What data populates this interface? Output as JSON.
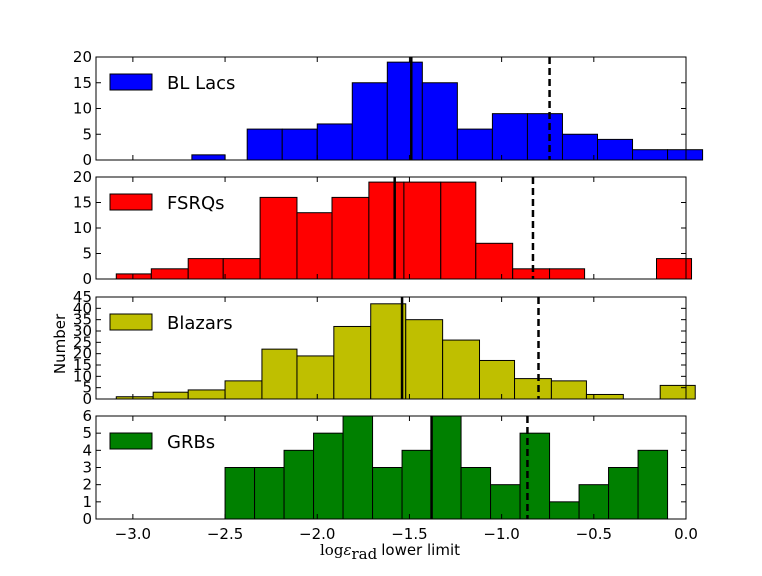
{
  "chart_data": {
    "type": "histogram-stack",
    "ylabel": "Number",
    "xlabel": {
      "math_main": "log",
      "math_eps": "ε",
      "math_sub": "rad",
      "rest": "lower limit"
    },
    "xlim": [
      -3.2,
      0.0
    ],
    "xticks": [
      -3.0,
      -2.5,
      -2.0,
      -1.5,
      -1.0,
      -0.5,
      0.0
    ],
    "xtick_labels": [
      "−3.0",
      "−2.5",
      "−2.0",
      "−1.5",
      "−1.0",
      "−0.5",
      "0.0"
    ],
    "panels": [
      {
        "name": "BL Lacs",
        "color": "#0000ff",
        "ylim": [
          0,
          20
        ],
        "yticks": [
          0,
          5,
          10,
          15,
          20
        ],
        "bins": [
          {
            "x0": -2.68,
            "x1": -2.5,
            "v": 1
          },
          {
            "x0": -2.38,
            "x1": -2.19,
            "v": 6
          },
          {
            "x0": -2.19,
            "x1": -2.0,
            "v": 6
          },
          {
            "x0": -2.0,
            "x1": -1.81,
            "v": 7
          },
          {
            "x0": -1.81,
            "x1": -1.62,
            "v": 15
          },
          {
            "x0": -1.62,
            "x1": -1.43,
            "v": 19
          },
          {
            "x0": -1.43,
            "x1": -1.24,
            "v": 15
          },
          {
            "x0": -1.24,
            "x1": -1.05,
            "v": 6
          },
          {
            "x0": -1.05,
            "x1": -0.86,
            "v": 9
          },
          {
            "x0": -0.86,
            "x1": -0.67,
            "v": 9
          },
          {
            "x0": -0.67,
            "x1": -0.48,
            "v": 5
          },
          {
            "x0": -0.48,
            "x1": -0.29,
            "v": 4
          },
          {
            "x0": -0.29,
            "x1": -0.1,
            "v": 2
          },
          {
            "x0": -0.1,
            "x1": 0.09,
            "v": 2
          }
        ],
        "solid_line": -1.49,
        "dashed_line": -0.74
      },
      {
        "name": "FSRQs",
        "color": "#ff0000",
        "ylim": [
          0,
          20
        ],
        "yticks": [
          0,
          5,
          10,
          15,
          20
        ],
        "bins": [
          {
            "x0": -3.09,
            "x1": -2.9,
            "v": 1
          },
          {
            "x0": -2.9,
            "x1": -2.7,
            "v": 2
          },
          {
            "x0": -2.7,
            "x1": -2.51,
            "v": 4
          },
          {
            "x0": -2.51,
            "x1": -2.31,
            "v": 4
          },
          {
            "x0": -2.31,
            "x1": -2.11,
            "v": 16
          },
          {
            "x0": -2.11,
            "x1": -1.92,
            "v": 13
          },
          {
            "x0": -1.92,
            "x1": -1.72,
            "v": 16
          },
          {
            "x0": -1.72,
            "x1": -1.53,
            "v": 19
          },
          {
            "x0": -1.53,
            "x1": -1.33,
            "v": 19
          },
          {
            "x0": -1.33,
            "x1": -1.14,
            "v": 19
          },
          {
            "x0": -1.14,
            "x1": -0.94,
            "v": 7
          },
          {
            "x0": -0.94,
            "x1": -0.74,
            "v": 2
          },
          {
            "x0": -0.74,
            "x1": -0.55,
            "v": 2
          },
          {
            "x0": -0.55,
            "x1": -0.35,
            "v": 0
          },
          {
            "x0": -0.35,
            "x1": -0.16,
            "v": 0
          },
          {
            "x0": -0.16,
            "x1": 0.03,
            "v": 4
          }
        ],
        "solid_line": -1.58,
        "dashed_line": -0.83
      },
      {
        "name": "Blazars",
        "color": "#bfbf00",
        "ylim": [
          0,
          45
        ],
        "yticks": [
          0,
          5,
          10,
          15,
          20,
          25,
          30,
          35,
          40,
          45
        ],
        "bins": [
          {
            "x0": -3.09,
            "x1": -2.89,
            "v": 1
          },
          {
            "x0": -2.89,
            "x1": -2.7,
            "v": 3
          },
          {
            "x0": -2.7,
            "x1": -2.5,
            "v": 4
          },
          {
            "x0": -2.5,
            "x1": -2.3,
            "v": 8
          },
          {
            "x0": -2.3,
            "x1": -2.11,
            "v": 22
          },
          {
            "x0": -2.11,
            "x1": -1.91,
            "v": 19
          },
          {
            "x0": -1.91,
            "x1": -1.71,
            "v": 32
          },
          {
            "x0": -1.71,
            "x1": -1.52,
            "v": 42
          },
          {
            "x0": -1.52,
            "x1": -1.32,
            "v": 35
          },
          {
            "x0": -1.32,
            "x1": -1.12,
            "v": 26
          },
          {
            "x0": -1.12,
            "x1": -0.93,
            "v": 17
          },
          {
            "x0": -0.93,
            "x1": -0.73,
            "v": 9
          },
          {
            "x0": -0.73,
            "x1": -0.54,
            "v": 8
          },
          {
            "x0": -0.54,
            "x1": -0.34,
            "v": 2
          },
          {
            "x0": -0.34,
            "x1": -0.14,
            "v": 0
          },
          {
            "x0": -0.14,
            "x1": 0.05,
            "v": 6
          }
        ],
        "solid_line": -1.54,
        "dashed_line": -0.8
      },
      {
        "name": "GRBs",
        "color": "#008000",
        "ylim": [
          0,
          6
        ],
        "yticks": [
          0,
          1,
          2,
          3,
          4,
          5,
          6
        ],
        "bins": [
          {
            "x0": -2.5,
            "x1": -2.34,
            "v": 3
          },
          {
            "x0": -2.34,
            "x1": -2.18,
            "v": 3
          },
          {
            "x0": -2.18,
            "x1": -2.02,
            "v": 4
          },
          {
            "x0": -2.02,
            "x1": -1.86,
            "v": 5
          },
          {
            "x0": -1.86,
            "x1": -1.7,
            "v": 6
          },
          {
            "x0": -1.7,
            "x1": -1.54,
            "v": 3
          },
          {
            "x0": -1.54,
            "x1": -1.38,
            "v": 4
          },
          {
            "x0": -1.38,
            "x1": -1.22,
            "v": 6
          },
          {
            "x0": -1.22,
            "x1": -1.06,
            "v": 3
          },
          {
            "x0": -1.06,
            "x1": -0.9,
            "v": 2
          },
          {
            "x0": -0.9,
            "x1": -0.74,
            "v": 5
          },
          {
            "x0": -0.74,
            "x1": -0.58,
            "v": 1
          },
          {
            "x0": -0.58,
            "x1": -0.42,
            "v": 2
          },
          {
            "x0": -0.42,
            "x1": -0.26,
            "v": 3
          },
          {
            "x0": -0.26,
            "x1": -0.1,
            "v": 4
          }
        ],
        "solid_line": -1.38,
        "dashed_line": -0.86
      }
    ]
  }
}
